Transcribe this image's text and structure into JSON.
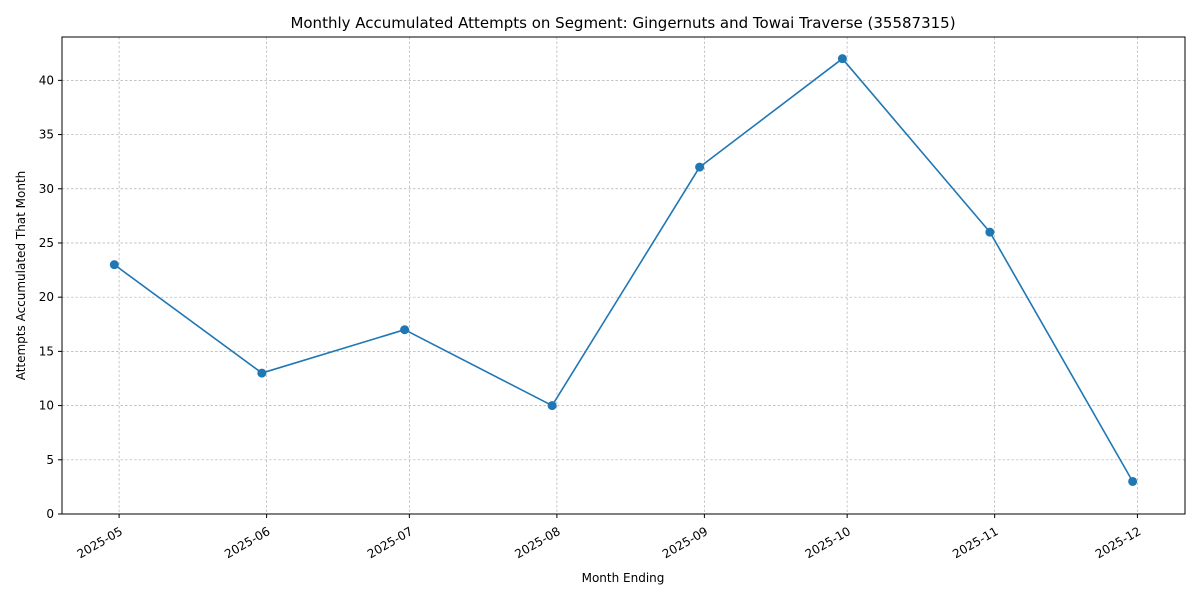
{
  "chart_data": {
    "type": "line",
    "title": "Monthly Accumulated Attempts on Segment: Gingernuts and Towai Traverse (35587315)",
    "xlabel": "Month Ending",
    "ylabel": "Attempts Accumulated That Month",
    "x_axis": {
      "type": "date",
      "tick_labels": [
        "2025-05",
        "2025-06",
        "2025-07",
        "2025-08",
        "2025-09",
        "2025-10",
        "2025-11",
        "2025-12"
      ],
      "tick_dates": [
        "2025-05-01",
        "2025-06-01",
        "2025-07-01",
        "2025-08-01",
        "2025-09-01",
        "2025-10-01",
        "2025-11-01",
        "2025-12-01"
      ],
      "range": [
        "2025-04-19",
        "2025-12-11"
      ]
    },
    "y_axis": {
      "ticks": [
        0,
        5,
        10,
        15,
        20,
        25,
        30,
        35,
        40
      ],
      "ylim": [
        0,
        44
      ]
    },
    "grid": true,
    "series": [
      {
        "color": "#1f77b4",
        "marker": "circle",
        "points": [
          {
            "x": "2025-04-30",
            "y": 23
          },
          {
            "x": "2025-05-31",
            "y": 13
          },
          {
            "x": "2025-06-30",
            "y": 17
          },
          {
            "x": "2025-07-31",
            "y": 10
          },
          {
            "x": "2025-08-31",
            "y": 32
          },
          {
            "x": "2025-09-30",
            "y": 42
          },
          {
            "x": "2025-10-31",
            "y": 26
          },
          {
            "x": "2025-11-30",
            "y": 3
          }
        ]
      }
    ]
  }
}
